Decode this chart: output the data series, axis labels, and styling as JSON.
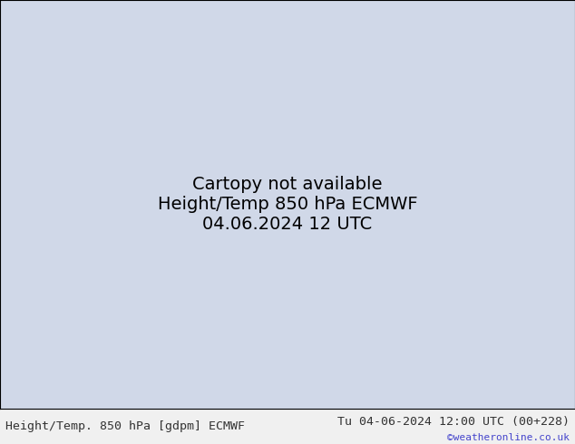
{
  "title_left": "Height/Temp. 850 hPa [gdpm] ECMWF",
  "title_right": "Tu 04-06-2024 12:00 UTC (00+228)",
  "copyright": "©weatheronline.co.uk",
  "background_color": "#d0d8e8",
  "land_color": "#c8e8c0",
  "border_color": "#888888",
  "fig_width": 6.34,
  "fig_height": 4.9,
  "dpi": 100,
  "map_extent": [
    100,
    180,
    -55,
    10
  ],
  "footer_color": "#333333",
  "copyright_color": "#4444cc",
  "title_fontsize": 9.5,
  "footer_fontsize": 9.5
}
